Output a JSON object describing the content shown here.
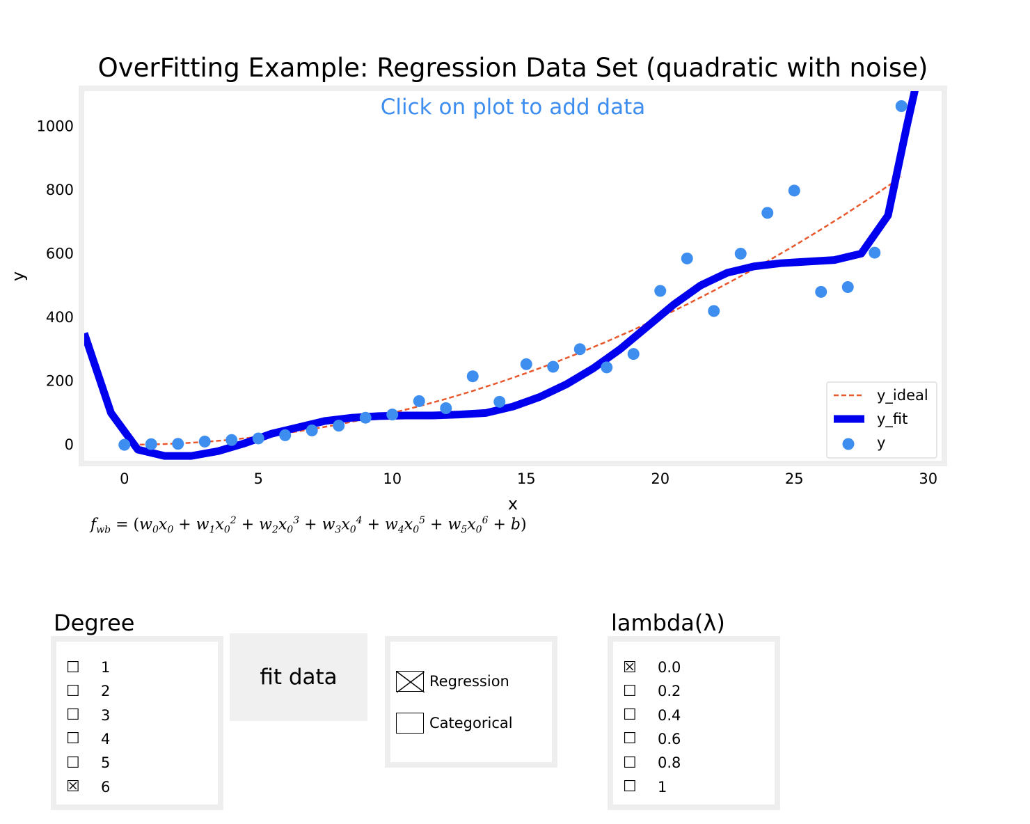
{
  "chart_data": {
    "type": "scatter",
    "title": "OverFitting Example: Regression Data Set (quadratic with noise)",
    "subtitle": "Click on plot to add data",
    "xlabel": "x",
    "ylabel": "y",
    "xlim": [
      -1.5,
      30.5
    ],
    "ylim": [
      -50,
      1110
    ],
    "x_ticks": [
      0,
      5,
      10,
      15,
      20,
      25,
      30
    ],
    "y_ticks": [
      0,
      200,
      400,
      600,
      800,
      1000
    ],
    "legend_position": "bottom-right",
    "legend": [
      "y_ideal",
      "y_fit",
      "y"
    ],
    "series": [
      {
        "name": "y_ideal",
        "style": "dashed-line",
        "color": "#e8582c",
        "x": [
          0,
          1,
          2,
          3,
          4,
          5,
          6,
          7,
          8,
          9,
          10,
          11,
          12,
          13,
          14,
          15,
          16,
          17,
          18,
          19,
          20,
          21,
          22,
          23,
          24,
          25,
          26,
          27,
          28,
          29
        ],
        "y": [
          0,
          1,
          4,
          9,
          16,
          25,
          36,
          49,
          64,
          81,
          100,
          121,
          144,
          169,
          196,
          225,
          256,
          289,
          324,
          361,
          400,
          441,
          484,
          529,
          576,
          625,
          676,
          729,
          784,
          841
        ]
      },
      {
        "name": "y_fit",
        "style": "thick-line",
        "color": "#0000ee",
        "x": [
          -1.5,
          -0.5,
          0.5,
          1.5,
          2.5,
          3.5,
          4.5,
          5.5,
          6.5,
          7.5,
          8.5,
          9.5,
          10.5,
          11.5,
          12.5,
          13.5,
          14.5,
          15.5,
          16.5,
          17.5,
          18.5,
          19.5,
          20.5,
          21.5,
          22.5,
          23.5,
          24.5,
          25.5,
          26.5,
          27.5,
          28.5,
          29.2,
          29.6
        ],
        "y": [
          350,
          100,
          -15,
          -35,
          -35,
          -20,
          5,
          35,
          55,
          75,
          85,
          90,
          92,
          92,
          95,
          100,
          120,
          150,
          190,
          240,
          300,
          370,
          440,
          500,
          540,
          560,
          570,
          575,
          580,
          600,
          720,
          1000,
          1150
        ]
      },
      {
        "name": "y",
        "style": "points",
        "color": "#3e8ef0",
        "x": [
          0,
          1,
          2,
          3,
          4,
          5,
          6,
          7,
          8,
          9,
          10,
          11,
          12,
          13,
          14,
          15,
          16,
          17,
          18,
          19,
          20,
          21,
          22,
          23,
          24,
          25,
          26,
          27,
          28,
          29
        ],
        "y": [
          0,
          2,
          3,
          10,
          15,
          20,
          30,
          45,
          60,
          85,
          95,
          137,
          115,
          215,
          135,
          253,
          245,
          300,
          243,
          285,
          483,
          585,
          420,
          600,
          728,
          798,
          480,
          495,
          603,
          1063
        ]
      }
    ]
  },
  "formula": {
    "lhs": "f",
    "lhs_sub": "wb",
    "rhs": "= (w0x0 + w1x0^2 + w2x0^3 + w3x0^4 + w4x0^5 + w5x0^6 + b)"
  },
  "degree": {
    "title": "Degree",
    "options": [
      "1",
      "2",
      "3",
      "4",
      "5",
      "6"
    ],
    "selected": "6"
  },
  "fit_button": {
    "label": "fit data"
  },
  "mode": {
    "options": [
      "Regression",
      "Categorical"
    ],
    "selected": "Regression"
  },
  "lambda": {
    "title": "lambda(λ)",
    "options": [
      "0.0",
      "0.2",
      "0.4",
      "0.6",
      "0.8",
      "1"
    ],
    "selected": "0.0"
  },
  "colors": {
    "points": "#3e8ef0",
    "fit": "#0000ee",
    "ideal": "#e8582c",
    "subtitle": "#3e8ef0",
    "frame": "#eeeeee"
  }
}
